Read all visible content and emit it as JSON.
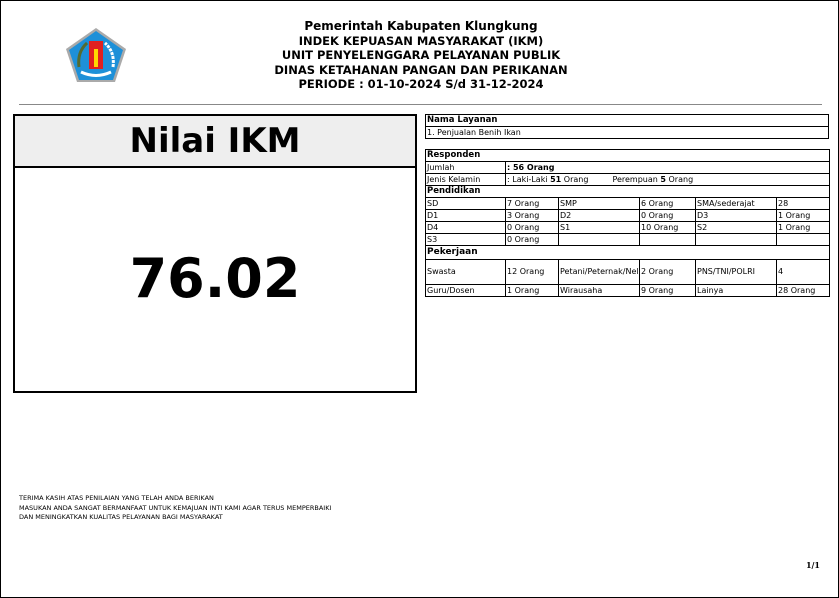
{
  "header": {
    "lines": [
      "Pemerintah Kabupaten Klungkung",
      "INDEK KEPUASAN MASYARAKAT (IKM)",
      "UNIT PENYELENGGARA PELAYANAN PUBLIK",
      "DINAS KETAHANAN PANGAN DAN PERIKANAN",
      "PERIODE : 01-10-2024 S/d 31-12-2024"
    ]
  },
  "ikm": {
    "title": "Nilai IKM",
    "value": "76.02"
  },
  "layanan": {
    "label": "Nama Layanan",
    "value": "1. Penjualan Benih Ikan"
  },
  "responden": {
    "label": "Responden",
    "jumlah_label": "Jumlah",
    "jumlah_value": ": 56 Orang",
    "gender_label": "Jenis Kelamin",
    "gender_prefix": ": Laki-Laki ",
    "male": "51",
    "male_unit": " Orang",
    "female_prefix": "Perempuan ",
    "female": "5",
    "female_unit": " Orang"
  },
  "pendidikan": {
    "label": "Pendidikan",
    "rows": [
      [
        "SD",
        "7 Orang",
        "SMP",
        "6 Orang",
        "SMA/sederajat",
        "28"
      ],
      [
        "D1",
        "3 Orang",
        "D2",
        "0 Orang",
        "D3",
        "1 Orang"
      ],
      [
        "D4",
        "0 Orang",
        "S1",
        "10 Orang",
        "S2",
        "1 Orang"
      ],
      [
        "S3",
        "0 Orang",
        "",
        "",
        "",
        ""
      ]
    ]
  },
  "pekerjaan": {
    "label": "Pekerjaan",
    "rows": [
      [
        "Swasta",
        "12 Orang",
        "Petani/Peternak/Nelayan",
        "2 Orang",
        "PNS/TNI/POLRI",
        "4"
      ],
      [
        "Guru/Dosen",
        "1 Orang",
        "Wirausaha",
        "9 Orang",
        "Lainya",
        "28 Orang"
      ]
    ]
  },
  "footer": {
    "lines": [
      "TERIMA KASIH ATAS PENILAIAN YANG TELAH ANDA BERIKAN",
      "MASUKAN ANDA SANGAT BERMANFAAT UNTUK KEMAJUAN INTI KAMI AGAR TERUS MEMPERBAIKI",
      "DAN MENINGKATKAN KUALITAS PELAYANAN BAGI MASYARAKAT"
    ]
  },
  "page_number": "1/1"
}
